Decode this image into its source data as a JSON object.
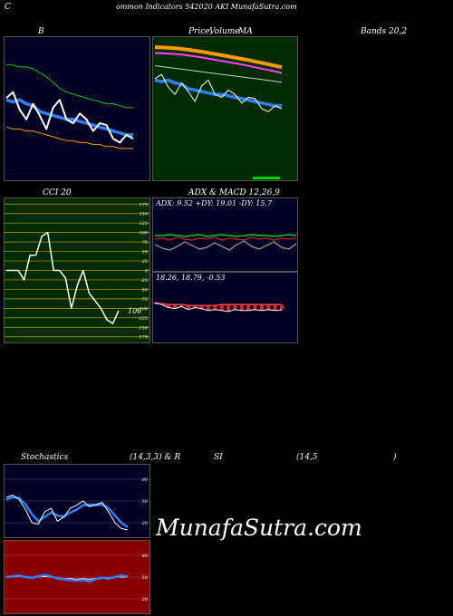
{
  "header": {
    "c": "C",
    "title": "ommon  Indicators 542020  AKI MunafaSutra.com"
  },
  "bb": {
    "title": "B"
  },
  "price": {
    "title_a": "Price,",
    "title_b": "Volume",
    "title_c": "MA",
    "title_d": "Bands 20,2"
  },
  "cci": {
    "title": "CCI 20",
    "value_label": "106"
  },
  "adx": {
    "title": "ADX  & MACD 12,26,9",
    "readout": "ADX: 9.52  +DY: 19.01 -DY: 15.7"
  },
  "macd": {
    "readout": "18.26,  18.79,  -0.53"
  },
  "stoch": {
    "title_a": "Stochastics",
    "title_b": "(14,3,3) & R",
    "title_c": "SI",
    "title_d": "(14,5",
    "title_e": ")"
  },
  "watermark": "MunafaSutra.com",
  "colors": {
    "green_bg": "#002b00",
    "navy_bg": "#000022",
    "red_bg": "#880000",
    "blue": "#2f80ff",
    "orange": "#ff9900",
    "magenta": "#ff44ff",
    "green": "#00cc00",
    "gold": "#c8a000"
  },
  "chart_data": [
    {
      "type": "line",
      "panel": "bollinger",
      "series": [
        {
          "values": [
            71,
            74,
            65,
            60,
            68,
            62,
            55,
            66,
            70,
            60,
            58,
            63,
            60,
            54,
            58,
            57,
            50,
            48,
            52,
            50
          ]
        },
        {
          "values": [
            70,
            69,
            70,
            68,
            67,
            64,
            63,
            62,
            61,
            60,
            60,
            59,
            58,
            57,
            56,
            55,
            54,
            53,
            52,
            52
          ]
        },
        {
          "values": [
            88,
            88,
            87,
            87,
            86,
            84,
            82,
            79,
            76,
            74,
            73,
            72,
            71,
            70,
            69,
            68,
            68,
            67,
            66,
            66
          ]
        },
        {
          "values": [
            56,
            55,
            55,
            54,
            54,
            53,
            52,
            51,
            50,
            49,
            49,
            48,
            48,
            47,
            47,
            46,
            46,
            45,
            45,
            45
          ]
        }
      ],
      "ylim": [
        30,
        100
      ]
    },
    {
      "type": "line",
      "panel": "price-ma",
      "series": [
        {
          "values": [
            71,
            74,
            65,
            60,
            68,
            62,
            55,
            66,
            70,
            60,
            58,
            63,
            60,
            54,
            58,
            57,
            50,
            48,
            52,
            50
          ]
        },
        {
          "values": [
            93,
            92.8,
            92.5,
            92.2,
            91.8,
            91.2,
            90.5,
            89.8,
            89,
            88.2,
            87.4,
            86.5,
            85.7,
            84.8,
            84,
            83,
            82,
            81,
            80,
            79
          ]
        },
        {
          "values": [
            89,
            88.8,
            88.5,
            88.2,
            87.8,
            87.2,
            86.5,
            85.8,
            85,
            84.2,
            83.4,
            82.6,
            81.8,
            80.9,
            80,
            79,
            78,
            77,
            76,
            75
          ]
        },
        {
          "values": [
            80,
            79.4,
            78.8,
            78.2,
            77.6,
            77,
            76.4,
            75.8,
            75.2,
            74.6,
            74,
            73.4,
            72.8,
            72.2,
            71.6,
            71,
            70.4,
            69.8,
            69.2,
            68.6
          ]
        },
        {
          "values": [
            70,
            69,
            70,
            68,
            67,
            64,
            63,
            62,
            61,
            60,
            60,
            59,
            58,
            57,
            56,
            55,
            54,
            53,
            52,
            52
          ]
        }
      ],
      "ylim": [
        0,
        100
      ]
    },
    {
      "type": "line",
      "panel": "cci",
      "ticks": [
        175,
        150,
        125,
        100,
        75,
        50,
        25,
        0,
        -25,
        -50,
        -75,
        -100,
        -125,
        -150,
        -175
      ],
      "series": [
        {
          "values": [
            0,
            0,
            0,
            -25,
            40,
            40,
            90,
            100,
            0,
            0,
            -20,
            -100,
            -40,
            0,
            -60,
            -80,
            -100,
            -130,
            -140,
            -106
          ]
        }
      ],
      "ylim": [
        -190,
        190
      ]
    },
    {
      "type": "line",
      "panel": "adx",
      "series": [
        {
          "values": [
            19,
            19,
            20,
            19,
            18,
            19,
            20,
            18,
            19,
            20,
            19,
            18,
            19,
            20,
            19,
            19,
            18,
            19,
            20,
            19
          ]
        },
        {
          "values": [
            15,
            16,
            14,
            17,
            15,
            14,
            16,
            15,
            17,
            14,
            16,
            15,
            14,
            17,
            15,
            16,
            14,
            16,
            15,
            16
          ]
        },
        {
          "values": [
            9,
            5,
            3,
            7,
            12,
            8,
            4,
            6,
            11,
            7,
            3,
            9,
            13,
            7,
            4,
            8,
            12,
            6,
            4,
            10
          ]
        }
      ],
      "ylim": [
        -20,
        60
      ]
    },
    {
      "type": "bar",
      "panel": "macd",
      "series": [
        {
          "name": "macd",
          "values": [
            19,
            18.8,
            18.5,
            18.4,
            18.6,
            18.3,
            18.5,
            18.4,
            18.2,
            18.3,
            18.2,
            18.1,
            18.3,
            18.2,
            18.2,
            18.3,
            18.2,
            18.3,
            18.2,
            18.26
          ]
        },
        {
          "name": "signal",
          "values": [
            18.9,
            18.9,
            18.8,
            18.8,
            18.8,
            18.7,
            18.7,
            18.7,
            18.7,
            18.7,
            18.8,
            18.8,
            18.8,
            18.8,
            18.8,
            18.8,
            18.8,
            18.8,
            18.8,
            18.79
          ]
        }
      ],
      "ylim": [
        15,
        22
      ]
    },
    {
      "type": "line",
      "panel": "stochastics",
      "ticks": [
        80,
        50,
        20
      ],
      "series": [
        {
          "values": [
            55,
            58,
            52,
            38,
            20,
            18,
            35,
            40,
            22,
            28,
            40,
            44,
            50,
            42,
            45,
            48,
            35,
            20,
            12,
            10
          ]
        },
        {
          "values": [
            52,
            55,
            54,
            45,
            32,
            22,
            28,
            34,
            30,
            28,
            34,
            38,
            44,
            45,
            44,
            45,
            40,
            30,
            20,
            14
          ]
        }
      ],
      "ylim": [
        0,
        100
      ]
    },
    {
      "type": "line",
      "panel": "rsi",
      "ticks": [
        80,
        50,
        20
      ],
      "series": [
        {
          "values": [
            50,
            51,
            52,
            50,
            49,
            51,
            53,
            51,
            48,
            47,
            46,
            45,
            46,
            44,
            47,
            49,
            48,
            50,
            52,
            51
          ]
        },
        {
          "values": [
            50,
            50,
            51,
            50,
            50,
            50,
            51,
            50,
            49,
            48,
            48,
            47,
            48,
            47,
            48,
            49,
            49,
            50,
            50,
            50
          ]
        }
      ],
      "ylim": [
        0,
        100
      ]
    }
  ]
}
